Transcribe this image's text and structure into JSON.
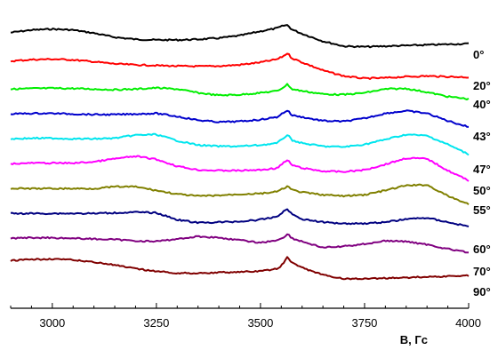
{
  "chart_data": {
    "type": "line",
    "title": "",
    "xlabel": "B, Гс",
    "ylabel": "",
    "xlim": [
      2900,
      4000
    ],
    "xticks": [
      3000,
      3250,
      3500,
      3750,
      4000
    ],
    "xtick_labels": [
      "3000",
      "3250",
      "3500",
      "3750",
      "4000"
    ],
    "grid": false,
    "legend": "angle labels at right end of each trace",
    "series": [
      {
        "label": "",
        "color": "#000000",
        "x": [
          2900,
          2950,
          3000,
          3050,
          3100,
          3150,
          3200,
          3250,
          3300,
          3350,
          3400,
          3450,
          3500,
          3540,
          3555,
          3565,
          3575,
          3600,
          3650,
          3700,
          3750,
          3800,
          3850,
          3900,
          3950,
          4000
        ],
        "y": [
          0.6,
          0.8,
          0.88,
          0.8,
          0.55,
          0.22,
          0.05,
          0.0,
          0.0,
          0.05,
          0.15,
          0.35,
          0.7,
          0.95,
          1.15,
          1.2,
          0.85,
          0.5,
          -0.1,
          -0.5,
          -0.55,
          -0.5,
          -0.45,
          -0.4,
          -0.35,
          -0.3
        ]
      },
      {
        "label": "0°",
        "color": "#ff0000",
        "x": [
          2900,
          2950,
          3000,
          3050,
          3100,
          3150,
          3200,
          3250,
          3300,
          3350,
          3400,
          3450,
          3500,
          3540,
          3555,
          3565,
          3575,
          3600,
          3650,
          3700,
          3750,
          3800,
          3850,
          3900,
          3950,
          4000
        ],
        "y": [
          0.3,
          0.42,
          0.46,
          0.4,
          0.25,
          0.08,
          0.0,
          -0.05,
          -0.1,
          -0.12,
          -0.1,
          0.0,
          0.2,
          0.45,
          0.7,
          0.95,
          0.55,
          0.2,
          -0.45,
          -0.9,
          -1.1,
          -1.05,
          -0.95,
          -0.9,
          -0.95,
          -1.0
        ]
      },
      {
        "label": "20°",
        "color": "#00ee00",
        "x": [
          2900,
          2950,
          3000,
          3050,
          3100,
          3150,
          3200,
          3250,
          3300,
          3350,
          3400,
          3450,
          3500,
          3540,
          3555,
          3565,
          3575,
          3600,
          3650,
          3700,
          3750,
          3800,
          3850,
          3900,
          3950,
          4000
        ],
        "y": [
          0.05,
          0.1,
          0.12,
          0.1,
          0.05,
          0.0,
          0.05,
          0.15,
          0.05,
          -0.25,
          -0.45,
          -0.4,
          -0.25,
          -0.1,
          0.2,
          0.45,
          0.05,
          -0.1,
          -0.35,
          -0.4,
          -0.25,
          0.05,
          0.1,
          -0.2,
          -0.55,
          -0.75
        ]
      },
      {
        "label": "40°",
        "color": "#0000cc",
        "x": [
          2900,
          2950,
          3000,
          3050,
          3100,
          3150,
          3200,
          3250,
          3300,
          3350,
          3400,
          3450,
          3500,
          3540,
          3555,
          3565,
          3575,
          3600,
          3650,
          3700,
          3750,
          3800,
          3850,
          3900,
          3950,
          4000
        ],
        "y": [
          0.05,
          0.1,
          0.1,
          0.05,
          0.0,
          0.0,
          0.05,
          0.1,
          -0.15,
          -0.45,
          -0.6,
          -0.55,
          -0.4,
          -0.2,
          0.15,
          0.35,
          -0.05,
          -0.2,
          -0.5,
          -0.55,
          -0.3,
          0.1,
          0.3,
          0.1,
          -0.5,
          -1.0
        ]
      },
      {
        "label": "43°",
        "color": "#00e5ee",
        "x": [
          2900,
          2950,
          3000,
          3050,
          3100,
          3150,
          3200,
          3250,
          3300,
          3350,
          3400,
          3450,
          3500,
          3540,
          3555,
          3565,
          3575,
          3600,
          3650,
          3700,
          3750,
          3800,
          3850,
          3900,
          3950,
          4000
        ],
        "y": [
          0.05,
          0.1,
          0.1,
          0.05,
          0.05,
          0.1,
          0.35,
          0.4,
          -0.1,
          -0.45,
          -0.55,
          -0.55,
          -0.45,
          -0.3,
          0.1,
          0.4,
          -0.05,
          -0.3,
          -0.55,
          -0.6,
          -0.4,
          0.0,
          0.4,
          0.3,
          -0.4,
          -1.2
        ]
      },
      {
        "label": "47°",
        "color": "#ff00ff",
        "x": [
          2900,
          2950,
          3000,
          3050,
          3100,
          3150,
          3200,
          3250,
          3300,
          3350,
          3400,
          3450,
          3500,
          3540,
          3555,
          3565,
          3575,
          3600,
          3650,
          3700,
          3750,
          3800,
          3850,
          3900,
          3950,
          4000
        ],
        "y": [
          0.05,
          0.1,
          0.1,
          0.1,
          0.2,
          0.45,
          0.65,
          0.4,
          -0.15,
          -0.45,
          -0.5,
          -0.5,
          -0.45,
          -0.3,
          0.1,
          0.35,
          -0.05,
          -0.3,
          -0.55,
          -0.6,
          -0.45,
          0.0,
          0.5,
          0.45,
          -0.5,
          -1.3
        ]
      },
      {
        "label": "50°",
        "color": "#808000",
        "x": [
          2900,
          2950,
          3000,
          3050,
          3100,
          3150,
          3200,
          3250,
          3300,
          3350,
          3400,
          3450,
          3500,
          3540,
          3555,
          3565,
          3575,
          3600,
          3650,
          3700,
          3750,
          3800,
          3850,
          3900,
          3950,
          4000
        ],
        "y": [
          0.05,
          0.05,
          0.05,
          0.05,
          0.05,
          0.2,
          0.2,
          -0.1,
          -0.4,
          -0.55,
          -0.5,
          -0.4,
          -0.35,
          -0.2,
          0.05,
          0.25,
          -0.05,
          -0.25,
          -0.45,
          -0.55,
          -0.45,
          -0.1,
          0.3,
          0.35,
          -0.55,
          -1.2
        ]
      },
      {
        "label": "55°",
        "color": "#000080",
        "x": [
          2900,
          2950,
          3000,
          3050,
          3100,
          3150,
          3200,
          3250,
          3300,
          3350,
          3400,
          3450,
          3500,
          3540,
          3555,
          3565,
          3575,
          3600,
          3650,
          3700,
          3750,
          3800,
          3850,
          3900,
          3950,
          4000
        ],
        "y": [
          0.05,
          0.05,
          0.05,
          0.05,
          0.05,
          0.1,
          0.15,
          0.1,
          -0.45,
          -0.7,
          -0.65,
          -0.6,
          -0.45,
          -0.2,
          0.2,
          0.4,
          0.0,
          -0.4,
          -0.65,
          -0.75,
          -0.75,
          -0.65,
          -0.4,
          -0.3,
          -0.65,
          -1.0
        ]
      },
      {
        "label": "60°",
        "color": "#800080",
        "x": [
          2900,
          2950,
          3000,
          3050,
          3100,
          3150,
          3200,
          3250,
          3300,
          3350,
          3400,
          3450,
          3500,
          3540,
          3555,
          3565,
          3575,
          3600,
          3650,
          3700,
          3750,
          3800,
          3850,
          3900,
          3950,
          4000
        ],
        "y": [
          0.05,
          0.1,
          0.1,
          0.05,
          0.0,
          -0.05,
          -0.15,
          -0.2,
          0.0,
          0.2,
          0.1,
          -0.1,
          -0.3,
          -0.1,
          0.1,
          0.45,
          0.05,
          -0.2,
          -0.7,
          -0.6,
          -0.4,
          -0.15,
          -0.2,
          -0.45,
          -0.8,
          -1.1
        ]
      },
      {
        "label": "70°",
        "color": "#800000",
        "x": [
          2900,
          2950,
          3000,
          3050,
          3100,
          3150,
          3200,
          3250,
          3300,
          3350,
          3400,
          3450,
          3500,
          3540,
          3555,
          3565,
          3575,
          3600,
          3650,
          3700,
          3750,
          3800,
          3850,
          3900,
          3950,
          4000
        ],
        "y": [
          0.25,
          0.35,
          0.4,
          0.3,
          0.15,
          -0.1,
          -0.4,
          -0.6,
          -0.75,
          -0.75,
          -0.7,
          -0.65,
          -0.6,
          -0.4,
          0.0,
          0.55,
          0.1,
          -0.3,
          -0.9,
          -1.2,
          -1.2,
          -1.15,
          -1.1,
          -1.05,
          -1.0,
          -0.95
        ]
      }
    ],
    "extra_labels": [
      "90°"
    ]
  }
}
